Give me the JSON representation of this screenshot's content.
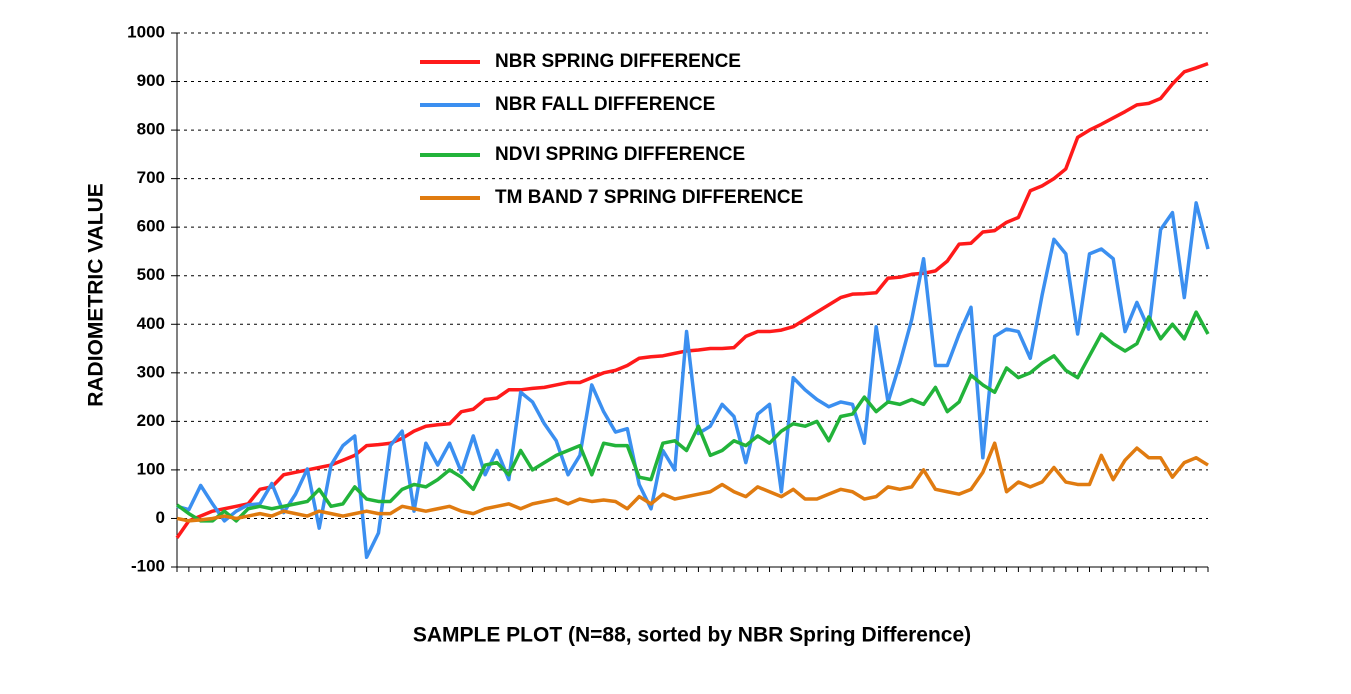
{
  "chart_data": {
    "type": "line",
    "y_label": "RADIOMETRIC  VALUE",
    "x_label": "SAMPLE PLOT (N=88, sorted by NBR Spring Difference)",
    "categories": [
      null,
      null,
      null,
      null,
      null,
      null,
      null,
      null,
      null,
      null,
      null,
      null,
      null,
      null,
      null,
      null,
      null,
      null,
      null,
      null,
      null,
      null,
      null,
      null,
      null,
      null,
      null,
      null,
      null,
      null,
      null,
      null,
      null,
      null,
      null,
      null,
      null,
      null,
      null,
      null,
      null,
      null,
      null,
      null,
      null,
      null,
      null,
      null,
      null,
      null,
      null,
      null,
      null,
      null,
      null,
      null,
      null,
      null,
      null,
      null,
      null,
      null,
      null,
      null,
      null,
      null,
      null,
      null,
      null,
      null,
      null,
      null,
      null,
      null,
      null,
      null,
      null,
      null,
      null,
      null,
      null,
      null,
      null,
      null,
      null,
      null,
      null,
      null
    ],
    "series": [
      {
        "name": "NBR SPRING DIFFERENCE",
        "color": "#ff1a1a",
        "values": [
          -40,
          -5,
          5,
          15,
          20,
          25,
          30,
          60,
          65,
          90,
          95,
          100,
          105,
          110,
          120,
          130,
          150,
          152,
          155,
          165,
          180,
          190,
          193,
          195,
          220,
          225,
          245,
          248,
          265,
          265,
          268,
          270,
          275,
          280,
          280,
          290,
          300,
          305,
          315,
          330,
          333,
          335,
          340,
          345,
          347,
          350,
          350,
          352,
          375,
          385,
          385,
          388,
          395,
          410,
          425,
          440,
          455,
          462,
          463,
          465,
          495,
          497,
          503,
          505,
          510,
          530,
          565,
          567,
          590,
          593,
          610,
          620,
          675,
          685,
          700,
          720,
          785,
          800,
          812,
          825,
          838,
          852,
          855,
          865,
          895,
          920,
          928,
          937
        ]
      },
      {
        "name": "NBR FALL DIFFERENCE",
        "color": "#3b8ff0",
        "values": [
          25,
          18,
          68,
          30,
          -5,
          15,
          28,
          30,
          72,
          12,
          50,
          102,
          -20,
          110,
          150,
          170,
          -80,
          -30,
          150,
          180,
          15,
          155,
          110,
          155,
          95,
          170,
          90,
          140,
          80,
          260,
          240,
          195,
          160,
          90,
          130,
          275,
          220,
          178,
          185,
          70,
          20,
          140,
          100,
          385,
          175,
          190,
          235,
          210,
          115,
          215,
          235,
          55,
          290,
          265,
          245,
          230,
          240,
          235,
          155,
          395,
          240,
          320,
          410,
          535,
          315,
          315,
          380,
          435,
          125,
          375,
          390,
          385,
          330,
          460,
          575,
          545,
          380,
          545,
          555,
          535,
          385,
          445,
          390,
          595,
          630,
          455,
          650,
          555
        ]
      },
      {
        "name": "NDVI SPRING DIFFERENCE",
        "color": "#22b33a",
        "values": [
          28,
          10,
          -5,
          -5,
          15,
          -5,
          20,
          25,
          20,
          25,
          30,
          35,
          60,
          25,
          30,
          65,
          40,
          35,
          35,
          60,
          70,
          65,
          80,
          100,
          85,
          60,
          110,
          115,
          90,
          140,
          100,
          115,
          130,
          140,
          150,
          90,
          155,
          150,
          150,
          85,
          80,
          155,
          160,
          140,
          190,
          130,
          140,
          160,
          150,
          170,
          155,
          180,
          195,
          190,
          200,
          160,
          210,
          215,
          250,
          220,
          240,
          235,
          245,
          235,
          270,
          220,
          240,
          295,
          275,
          260,
          310,
          290,
          300,
          320,
          335,
          305,
          290,
          335,
          380,
          360,
          345,
          360,
          415,
          370,
          400,
          370,
          425,
          380
        ]
      },
      {
        "name": "TM BAND 7 SPRING DIFFERENCE",
        "color": "#e07b10",
        "values": [
          0,
          -5,
          -3,
          0,
          5,
          0,
          5,
          10,
          5,
          15,
          10,
          5,
          15,
          10,
          5,
          10,
          15,
          10,
          10,
          25,
          20,
          15,
          20,
          25,
          15,
          10,
          20,
          25,
          30,
          20,
          30,
          35,
          40,
          30,
          40,
          35,
          38,
          35,
          20,
          45,
          30,
          50,
          40,
          45,
          50,
          55,
          70,
          55,
          45,
          65,
          55,
          45,
          60,
          40,
          40,
          50,
          60,
          55,
          40,
          45,
          65,
          60,
          65,
          100,
          60,
          55,
          50,
          60,
          95,
          155,
          55,
          75,
          65,
          75,
          105,
          75,
          70,
          70,
          130,
          80,
          120,
          145,
          125,
          125,
          85,
          115,
          125,
          110
        ]
      }
    ],
    "ylim": [
      -100,
      1000
    ],
    "yticks": [
      -100,
      0,
      100,
      200,
      300,
      400,
      500,
      600,
      700,
      800,
      900,
      1000
    ],
    "grid": true
  }
}
